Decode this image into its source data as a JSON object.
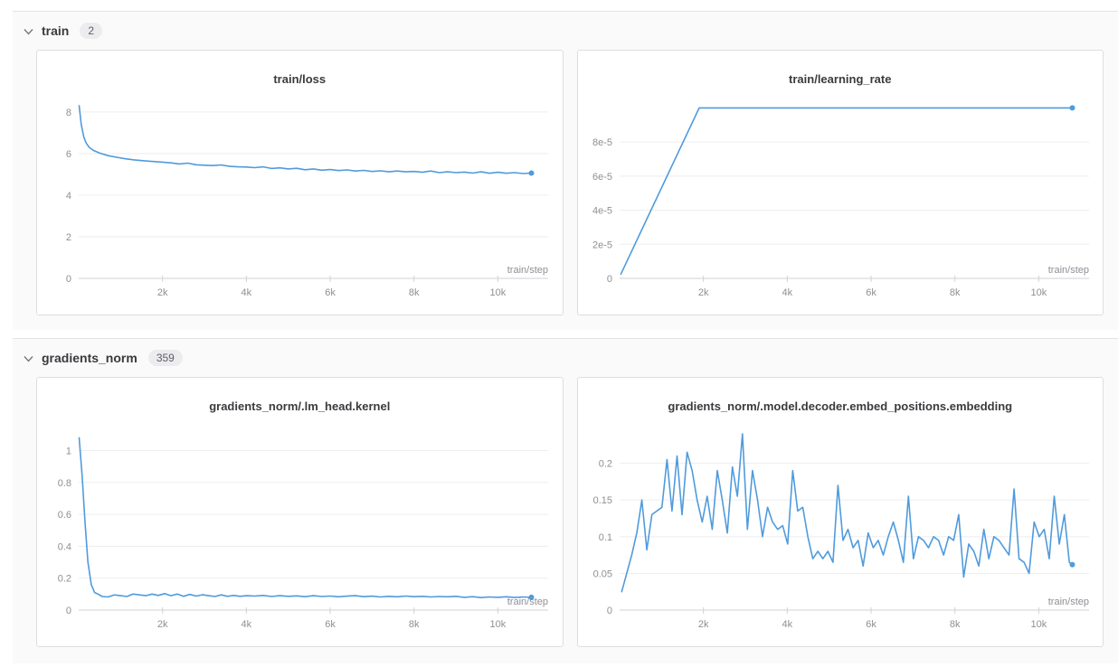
{
  "accent_color": "#4f9bdc",
  "xlabel": "train/step",
  "sections": [
    {
      "label": "train",
      "count": "2",
      "chevron_icon": "chevron-down-icon"
    },
    {
      "label": "gradients_norm",
      "count": "359",
      "chevron_icon": "chevron-down-icon"
    }
  ],
  "chart_data": [
    {
      "type": "line",
      "title": "train/loss",
      "xlabel": "train/step",
      "legend": "none",
      "grid": "horizontal",
      "xlim": [
        0,
        11200
      ],
      "x_ticks": [
        2000,
        4000,
        6000,
        8000,
        10000
      ],
      "x_tick_labels": [
        "2k",
        "4k",
        "6k",
        "8k",
        "10k"
      ],
      "ylim": [
        0,
        8.6
      ],
      "y_ticks": [
        0,
        2,
        4,
        6,
        8
      ],
      "y_tick_labels": [
        "0",
        "2",
        "4",
        "6",
        "8"
      ],
      "end_marker": true,
      "points": [
        [
          10,
          8.3
        ],
        [
          60,
          7.4
        ],
        [
          120,
          6.8
        ],
        [
          180,
          6.5
        ],
        [
          250,
          6.3
        ],
        [
          350,
          6.15
        ],
        [
          500,
          6.02
        ],
        [
          700,
          5.9
        ],
        [
          900,
          5.82
        ],
        [
          1100,
          5.75
        ],
        [
          1300,
          5.7
        ],
        [
          1500,
          5.66
        ],
        [
          1700,
          5.63
        ],
        [
          1900,
          5.6
        ],
        [
          2200,
          5.55
        ],
        [
          2400,
          5.5
        ],
        [
          2600,
          5.54
        ],
        [
          2800,
          5.46
        ],
        [
          3000,
          5.44
        ],
        [
          3200,
          5.42
        ],
        [
          3400,
          5.45
        ],
        [
          3600,
          5.38
        ],
        [
          3800,
          5.36
        ],
        [
          4000,
          5.35
        ],
        [
          4200,
          5.32
        ],
        [
          4400,
          5.36
        ],
        [
          4600,
          5.28
        ],
        [
          4800,
          5.31
        ],
        [
          5000,
          5.26
        ],
        [
          5200,
          5.29
        ],
        [
          5400,
          5.22
        ],
        [
          5600,
          5.26
        ],
        [
          5800,
          5.2
        ],
        [
          6000,
          5.23
        ],
        [
          6200,
          5.18
        ],
        [
          6400,
          5.21
        ],
        [
          6600,
          5.16
        ],
        [
          6800,
          5.19
        ],
        [
          7000,
          5.14
        ],
        [
          7200,
          5.17
        ],
        [
          7400,
          5.12
        ],
        [
          7600,
          5.16
        ],
        [
          7800,
          5.12
        ],
        [
          8000,
          5.14
        ],
        [
          8200,
          5.1
        ],
        [
          8400,
          5.16
        ],
        [
          8600,
          5.08
        ],
        [
          8800,
          5.12
        ],
        [
          9000,
          5.08
        ],
        [
          9200,
          5.11
        ],
        [
          9400,
          5.06
        ],
        [
          9600,
          5.12
        ],
        [
          9800,
          5.05
        ],
        [
          10000,
          5.1
        ],
        [
          10200,
          5.05
        ],
        [
          10400,
          5.08
        ],
        [
          10600,
          5.04
        ],
        [
          10800,
          5.06
        ]
      ]
    },
    {
      "type": "line",
      "title": "train/learning_rate",
      "xlabel": "train/step",
      "legend": "none",
      "grid": "horizontal",
      "xlim": [
        0,
        11200
      ],
      "x_ticks": [
        2000,
        4000,
        6000,
        8000,
        10000
      ],
      "x_tick_labels": [
        "2k",
        "4k",
        "6k",
        "8k",
        "10k"
      ],
      "ylim": [
        0,
        0.000105
      ],
      "y_ticks": [
        0,
        2e-05,
        4e-05,
        6e-05,
        8e-05
      ],
      "y_tick_labels": [
        "0",
        "2e-5",
        "4e-5",
        "6e-5",
        "8e-5"
      ],
      "end_marker": true,
      "points": [
        [
          30,
          2.5e-06
        ],
        [
          1900,
          0.0001
        ],
        [
          10800,
          0.0001
        ]
      ]
    },
    {
      "type": "line",
      "title": "gradients_norm/.lm_head.kernel",
      "xlabel": "train/step",
      "legend": "none",
      "grid": "horizontal",
      "xlim": [
        0,
        11200
      ],
      "x_ticks": [
        2000,
        4000,
        6000,
        8000,
        10000
      ],
      "x_tick_labels": [
        "2k",
        "4k",
        "6k",
        "8k",
        "10k"
      ],
      "ylim": [
        0,
        1.15
      ],
      "y_ticks": [
        0,
        0.2,
        0.4,
        0.6,
        0.8,
        1
      ],
      "y_tick_labels": [
        "0",
        "0.2",
        "0.4",
        "0.6",
        "0.8",
        "1"
      ],
      "end_marker": true,
      "points": [
        [
          10,
          1.08
        ],
        [
          80,
          0.85
        ],
        [
          150,
          0.55
        ],
        [
          220,
          0.3
        ],
        [
          300,
          0.16
        ],
        [
          380,
          0.11
        ],
        [
          460,
          0.1
        ],
        [
          560,
          0.085
        ],
        [
          700,
          0.082
        ],
        [
          850,
          0.095
        ],
        [
          1000,
          0.09
        ],
        [
          1150,
          0.085
        ],
        [
          1300,
          0.1
        ],
        [
          1450,
          0.095
        ],
        [
          1600,
          0.09
        ],
        [
          1750,
          0.1
        ],
        [
          1900,
          0.092
        ],
        [
          2050,
          0.103
        ],
        [
          2200,
          0.09
        ],
        [
          2350,
          0.1
        ],
        [
          2500,
          0.086
        ],
        [
          2650,
          0.098
        ],
        [
          2800,
          0.088
        ],
        [
          2950,
          0.096
        ],
        [
          3100,
          0.09
        ],
        [
          3250,
          0.085
        ],
        [
          3400,
          0.095
        ],
        [
          3550,
          0.086
        ],
        [
          3700,
          0.092
        ],
        [
          3850,
          0.086
        ],
        [
          4000,
          0.09
        ],
        [
          4200,
          0.088
        ],
        [
          4400,
          0.092
        ],
        [
          4600,
          0.085
        ],
        [
          4800,
          0.09
        ],
        [
          5000,
          0.086
        ],
        [
          5200,
          0.089
        ],
        [
          5400,
          0.084
        ],
        [
          5600,
          0.09
        ],
        [
          5800,
          0.085
        ],
        [
          6000,
          0.088
        ],
        [
          6200,
          0.083
        ],
        [
          6400,
          0.087
        ],
        [
          6600,
          0.09
        ],
        [
          6800,
          0.084
        ],
        [
          7000,
          0.087
        ],
        [
          7200,
          0.082
        ],
        [
          7400,
          0.086
        ],
        [
          7600,
          0.083
        ],
        [
          7800,
          0.088
        ],
        [
          8000,
          0.084
        ],
        [
          8200,
          0.086
        ],
        [
          8400,
          0.082
        ],
        [
          8600,
          0.085
        ],
        [
          8800,
          0.083
        ],
        [
          9000,
          0.086
        ],
        [
          9200,
          0.08
        ],
        [
          9400,
          0.084
        ],
        [
          9600,
          0.078
        ],
        [
          9800,
          0.082
        ],
        [
          10000,
          0.08
        ],
        [
          10200,
          0.083
        ],
        [
          10400,
          0.079
        ],
        [
          10600,
          0.082
        ],
        [
          10800,
          0.08
        ]
      ]
    },
    {
      "type": "line",
      "title": "gradients_norm/.model.decoder.embed_positions.embedding",
      "xlabel": "train/step",
      "legend": "none",
      "grid": "horizontal",
      "xlim": [
        0,
        11200
      ],
      "x_ticks": [
        2000,
        4000,
        6000,
        8000,
        10000
      ],
      "x_tick_labels": [
        "2k",
        "4k",
        "6k",
        "8k",
        "10k"
      ],
      "ylim": [
        0,
        0.25
      ],
      "y_ticks": [
        0,
        0.05,
        0.1,
        0.15,
        0.2
      ],
      "y_tick_labels": [
        "0",
        "0.05",
        "0.1",
        "0.15",
        "0.2"
      ],
      "end_marker": true,
      "points": [
        [
          50,
          0.025
        ],
        [
          170,
          0.05
        ],
        [
          290,
          0.075
        ],
        [
          410,
          0.105
        ],
        [
          530,
          0.15
        ],
        [
          650,
          0.082
        ],
        [
          770,
          0.13
        ],
        [
          890,
          0.135
        ],
        [
          1010,
          0.14
        ],
        [
          1130,
          0.205
        ],
        [
          1250,
          0.135
        ],
        [
          1370,
          0.21
        ],
        [
          1490,
          0.13
        ],
        [
          1610,
          0.215
        ],
        [
          1730,
          0.19
        ],
        [
          1850,
          0.15
        ],
        [
          1970,
          0.12
        ],
        [
          2090,
          0.155
        ],
        [
          2210,
          0.11
        ],
        [
          2330,
          0.19
        ],
        [
          2450,
          0.15
        ],
        [
          2570,
          0.105
        ],
        [
          2690,
          0.195
        ],
        [
          2810,
          0.155
        ],
        [
          2930,
          0.24
        ],
        [
          3050,
          0.11
        ],
        [
          3170,
          0.19
        ],
        [
          3290,
          0.15
        ],
        [
          3410,
          0.1
        ],
        [
          3530,
          0.14
        ],
        [
          3650,
          0.12
        ],
        [
          3770,
          0.11
        ],
        [
          3890,
          0.115
        ],
        [
          4010,
          0.09
        ],
        [
          4130,
          0.19
        ],
        [
          4250,
          0.135
        ],
        [
          4370,
          0.14
        ],
        [
          4490,
          0.1
        ],
        [
          4610,
          0.07
        ],
        [
          4730,
          0.08
        ],
        [
          4850,
          0.07
        ],
        [
          4970,
          0.08
        ],
        [
          5090,
          0.065
        ],
        [
          5210,
          0.17
        ],
        [
          5330,
          0.095
        ],
        [
          5450,
          0.11
        ],
        [
          5570,
          0.085
        ],
        [
          5690,
          0.095
        ],
        [
          5810,
          0.06
        ],
        [
          5930,
          0.105
        ],
        [
          6050,
          0.085
        ],
        [
          6170,
          0.095
        ],
        [
          6290,
          0.075
        ],
        [
          6410,
          0.1
        ],
        [
          6530,
          0.12
        ],
        [
          6650,
          0.095
        ],
        [
          6770,
          0.065
        ],
        [
          6890,
          0.155
        ],
        [
          7010,
          0.07
        ],
        [
          7130,
          0.1
        ],
        [
          7250,
          0.095
        ],
        [
          7370,
          0.085
        ],
        [
          7490,
          0.1
        ],
        [
          7610,
          0.095
        ],
        [
          7730,
          0.075
        ],
        [
          7850,
          0.1
        ],
        [
          7970,
          0.095
        ],
        [
          8090,
          0.13
        ],
        [
          8210,
          0.045
        ],
        [
          8330,
          0.09
        ],
        [
          8450,
          0.08
        ],
        [
          8570,
          0.06
        ],
        [
          8690,
          0.11
        ],
        [
          8810,
          0.07
        ],
        [
          8930,
          0.1
        ],
        [
          9050,
          0.095
        ],
        [
          9170,
          0.085
        ],
        [
          9290,
          0.075
        ],
        [
          9410,
          0.165
        ],
        [
          9530,
          0.07
        ],
        [
          9650,
          0.065
        ],
        [
          9770,
          0.05
        ],
        [
          9890,
          0.12
        ],
        [
          10010,
          0.1
        ],
        [
          10130,
          0.11
        ],
        [
          10250,
          0.07
        ],
        [
          10370,
          0.155
        ],
        [
          10490,
          0.09
        ],
        [
          10610,
          0.13
        ],
        [
          10730,
          0.065
        ],
        [
          10800,
          0.062
        ]
      ]
    }
  ]
}
